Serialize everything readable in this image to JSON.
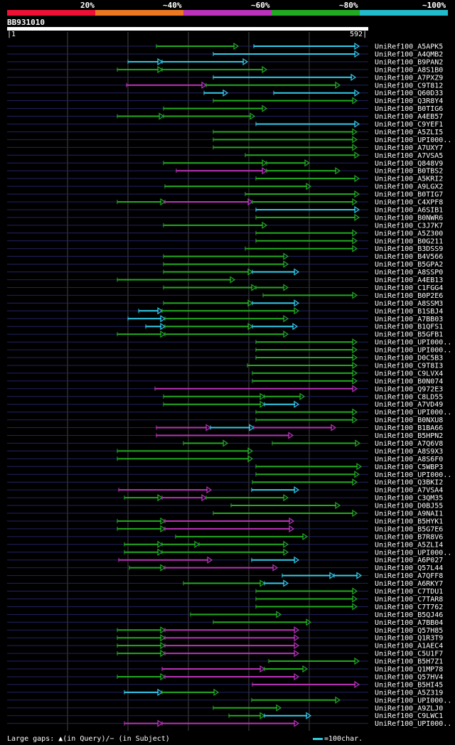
{
  "legend": {
    "segments": [
      {
        "label": "20%",
        "color": "#ee1133"
      },
      {
        "label": "~40%",
        "color": "#ee7722"
      },
      {
        "label": "~60%",
        "color": "#bb33bb"
      },
      {
        "label": "~80%",
        "color": "#22aa22"
      },
      {
        "label": "~100%",
        "color": "#22bbcc"
      }
    ]
  },
  "query": {
    "name": "BB931010",
    "start": "1",
    "end": "592",
    "length": 592
  },
  "colors": {
    "green": "#22aa22",
    "cyan": "#33ccee",
    "magenta": "#bb33bb",
    "track": "#222266",
    "grid": "#444444"
  },
  "hits": [
    {
      "name": "UniRef100_A5APK5",
      "segs": [
        [
          220,
          335,
          "g"
        ],
        [
          357,
          505,
          "c"
        ]
      ]
    },
    {
      "name": "UniRef100_A4QMB2",
      "segs": [
        [
          300,
          505,
          "c"
        ]
      ]
    },
    {
      "name": "UniRef100_B9PAN2",
      "segs": [
        [
          180,
          228,
          "c"
        ],
        [
          228,
          348,
          "c"
        ]
      ]
    },
    {
      "name": "UniRef100_A8S1B0",
      "segs": [
        [
          165,
          228,
          "g"
        ],
        [
          228,
          375,
          "g"
        ]
      ]
    },
    {
      "name": "UniRef100_A7PXZ9",
      "segs": [
        [
          300,
          500,
          "c"
        ]
      ]
    },
    {
      "name": "UniRef100_C9T812",
      "segs": [
        [
          178,
          290,
          "m"
        ],
        [
          290,
          478,
          "g"
        ]
      ]
    },
    {
      "name": "UniRef100_Q60D33",
      "segs": [
        [
          287,
          320,
          "c"
        ],
        [
          385,
          505,
          "c"
        ]
      ]
    },
    {
      "name": "UniRef100_Q3R8Y4",
      "segs": [
        [
          300,
          502,
          "g"
        ]
      ]
    },
    {
      "name": "UniRef100_B0TIG6",
      "segs": [
        [
          230,
          375,
          "g"
        ]
      ]
    },
    {
      "name": "UniRef100_A4EB57",
      "segs": [
        [
          165,
          230,
          "g"
        ],
        [
          230,
          358,
          "g"
        ]
      ]
    },
    {
      "name": "UniRef100_C9YEF1",
      "segs": [
        [
          360,
          505,
          "c"
        ]
      ]
    },
    {
      "name": "UniRef100_A5ZLI5",
      "segs": [
        [
          300,
          502,
          "g"
        ]
      ]
    },
    {
      "name": "UniRef100_UPI000..",
      "segs": [
        [
          300,
          502,
          "g"
        ]
      ]
    },
    {
      "name": "UniRef100_A7UXY7",
      "segs": [
        [
          300,
          502,
          "g"
        ]
      ]
    },
    {
      "name": "UniRef100_A7VSA5",
      "segs": [
        [
          345,
          505,
          "g"
        ]
      ]
    },
    {
      "name": "UniRef100_Q848V9",
      "segs": [
        [
          230,
          375,
          "g"
        ],
        [
          375,
          435,
          "g"
        ]
      ]
    },
    {
      "name": "UniRef100_B0TBS2",
      "segs": [
        [
          248,
          375,
          "m"
        ],
        [
          375,
          478,
          "g"
        ]
      ]
    },
    {
      "name": "UniRef100_A5KRI2",
      "segs": [
        [
          360,
          505,
          "g"
        ]
      ]
    },
    {
      "name": "UniRef100_A9LGX2",
      "segs": [
        [
          232,
          437,
          "g"
        ]
      ]
    },
    {
      "name": "UniRef100_B0TIG7",
      "segs": [
        [
          345,
          505,
          "g"
        ]
      ]
    },
    {
      "name": "UniRef100_C4XPF8",
      "segs": [
        [
          165,
          232,
          "g"
        ],
        [
          232,
          355,
          "m"
        ],
        [
          355,
          502,
          "g"
        ]
      ]
    },
    {
      "name": "UniRef100_A6SIB1",
      "segs": [
        [
          360,
          505,
          "c"
        ]
      ]
    },
    {
      "name": "UniRef100_B0NWR6",
      "segs": [
        [
          360,
          505,
          "g"
        ]
      ]
    },
    {
      "name": "UniRef100_C3J7K7",
      "segs": [
        [
          230,
          375,
          "g"
        ]
      ]
    },
    {
      "name": "UniRef100_A5Z300",
      "segs": [
        [
          360,
          502,
          "g"
        ]
      ]
    },
    {
      "name": "UniRef100_B0G211",
      "segs": [
        [
          360,
          502,
          "g"
        ]
      ]
    },
    {
      "name": "UniRef100_B3DSS9",
      "segs": [
        [
          345,
          502,
          "g"
        ]
      ]
    },
    {
      "name": "UniRef100_B4V566",
      "segs": [
        [
          230,
          405,
          "g"
        ]
      ]
    },
    {
      "name": "UniRef100_B5GPA2",
      "segs": [
        [
          230,
          405,
          "g"
        ]
      ]
    },
    {
      "name": "UniRef100_A8SSP0",
      "segs": [
        [
          230,
          355,
          "g"
        ],
        [
          355,
          420,
          "c"
        ]
      ]
    },
    {
      "name": "UniRef100_A4EB13",
      "segs": [
        [
          165,
          330,
          "g"
        ]
      ]
    },
    {
      "name": "UniRef100_C1FGG4",
      "segs": [
        [
          230,
          360,
          "g"
        ],
        [
          360,
          405,
          "g"
        ]
      ]
    },
    {
      "name": "UniRef100_B0P2E6",
      "segs": [
        [
          370,
          502,
          "g"
        ]
      ]
    },
    {
      "name": "UniRef100_A8SSM3",
      "segs": [
        [
          230,
          355,
          "g"
        ],
        [
          355,
          420,
          "c"
        ]
      ]
    },
    {
      "name": "UniRef100_B1SBJ4",
      "segs": [
        [
          195,
          228,
          "c"
        ],
        [
          228,
          420,
          "g"
        ]
      ]
    },
    {
      "name": "UniRef100_A7BB03",
      "segs": [
        [
          180,
          232,
          "c"
        ],
        [
          232,
          405,
          "g"
        ]
      ]
    },
    {
      "name": "UniRef100_B1QFS1",
      "segs": [
        [
          205,
          232,
          "c"
        ],
        [
          232,
          355,
          "g"
        ],
        [
          355,
          418,
          "c"
        ]
      ]
    },
    {
      "name": "UniRef100_B5GFB1",
      "segs": [
        [
          165,
          232,
          "g"
        ],
        [
          232,
          405,
          "g"
        ]
      ]
    },
    {
      "name": "UniRef100_UPI000..",
      "segs": [
        [
          360,
          502,
          "g"
        ]
      ]
    },
    {
      "name": "UniRef100_UPI000..",
      "segs": [
        [
          360,
          502,
          "g"
        ]
      ]
    },
    {
      "name": "UniRef100_D0C5B3",
      "segs": [
        [
          360,
          502,
          "g"
        ]
      ]
    },
    {
      "name": "UniRef100_C9T8I3",
      "segs": [
        [
          348,
          502,
          "g"
        ]
      ]
    },
    {
      "name": "UniRef100_C9LVX4",
      "segs": [
        [
          355,
          502,
          "g"
        ]
      ]
    },
    {
      "name": "UniRef100_B0N074",
      "segs": [
        [
          355,
          502,
          "g"
        ]
      ]
    },
    {
      "name": "UniRef100_Q972E3",
      "segs": [
        [
          218,
          502,
          "m"
        ]
      ]
    },
    {
      "name": "UniRef100_C8LD55",
      "segs": [
        [
          230,
          372,
          "g"
        ],
        [
          372,
          428,
          "g"
        ]
      ]
    },
    {
      "name": "UniRef100_A7VD49",
      "segs": [
        [
          230,
          372,
          "g"
        ],
        [
          372,
          420,
          "c"
        ]
      ]
    },
    {
      "name": "UniRef100_UPI000..",
      "segs": [
        [
          360,
          502,
          "g"
        ]
      ]
    },
    {
      "name": "UniRef100_B0NXU8",
      "segs": [
        [
          360,
          502,
          "g"
        ]
      ]
    },
    {
      "name": "UniRef100_B1BA66",
      "segs": [
        [
          220,
          296,
          "m"
        ],
        [
          296,
          357,
          "c"
        ],
        [
          357,
          472,
          "m"
        ]
      ]
    },
    {
      "name": "UniRef100_B5HPN2",
      "segs": [
        [
          220,
          412,
          "m"
        ]
      ]
    },
    {
      "name": "UniRef100_A7Q6V8",
      "segs": [
        [
          258,
          320,
          "g"
        ],
        [
          383,
          506,
          "g"
        ]
      ]
    },
    {
      "name": "UniRef100_A8S9X3",
      "segs": [
        [
          165,
          355,
          "g"
        ]
      ]
    },
    {
      "name": "UniRef100_A8S6F0",
      "segs": [
        [
          165,
          355,
          "g"
        ]
      ]
    },
    {
      "name": "UniRef100_C5WBP3",
      "segs": [
        [
          360,
          508,
          "g"
        ]
      ]
    },
    {
      "name": "UniRef100_UPI000..",
      "segs": [
        [
          360,
          505,
          "g"
        ]
      ]
    },
    {
      "name": "UniRef100_Q3BKI2",
      "segs": [
        [
          355,
          502,
          "g"
        ]
      ]
    },
    {
      "name": "UniRef100_A7VSA4",
      "segs": [
        [
          167,
          297,
          "m"
        ],
        [
          354,
          420,
          "c"
        ]
      ]
    },
    {
      "name": "UniRef100_C3QM35",
      "segs": [
        [
          175,
          228,
          "g"
        ],
        [
          228,
          290,
          "m"
        ],
        [
          290,
          405,
          "g"
        ]
      ]
    },
    {
      "name": "UniRef100_D0BJ55",
      "segs": [
        [
          325,
          478,
          "g"
        ]
      ]
    },
    {
      "name": "UniRef100_A9NAI1",
      "segs": [
        [
          300,
          502,
          "g"
        ]
      ]
    },
    {
      "name": "UniRef100_B5HYK1",
      "segs": [
        [
          165,
          232,
          "g"
        ],
        [
          232,
          413,
          "m"
        ]
      ]
    },
    {
      "name": "UniRef100_B5G7E6",
      "segs": [
        [
          165,
          232,
          "g"
        ],
        [
          232,
          413,
          "m"
        ]
      ]
    },
    {
      "name": "UniRef100_B7R8V6",
      "segs": [
        [
          247,
          432,
          "g"
        ]
      ]
    },
    {
      "name": "UniRef100_A5ZLI4",
      "segs": [
        [
          175,
          228,
          "g"
        ],
        [
          228,
          280,
          "g"
        ],
        [
          280,
          405,
          "g"
        ]
      ]
    },
    {
      "name": "UniRef100_UPI000..",
      "segs": [
        [
          175,
          228,
          "g"
        ],
        [
          228,
          405,
          "g"
        ]
      ]
    },
    {
      "name": "UniRef100_A6P027",
      "segs": [
        [
          167,
          298,
          "m"
        ],
        [
          354,
          420,
          "c"
        ]
      ]
    },
    {
      "name": "UniRef100_Q57L44",
      "segs": [
        [
          182,
          232,
          "g"
        ],
        [
          232,
          390,
          "m"
        ]
      ]
    },
    {
      "name": "UniRef100_A7QFF8",
      "segs": [
        [
          397,
          470,
          "c"
        ],
        [
          470,
          508,
          "c"
        ]
      ]
    },
    {
      "name": "UniRef100_A6RKY7",
      "segs": [
        [
          258,
          372,
          "g"
        ],
        [
          372,
          405,
          "c"
        ]
      ]
    },
    {
      "name": "UniRef100_C7TDU1",
      "segs": [
        [
          360,
          502,
          "g"
        ]
      ]
    },
    {
      "name": "UniRef100_C7TAR8",
      "segs": [
        [
          360,
          502,
          "g"
        ]
      ]
    },
    {
      "name": "UniRef100_C7T762",
      "segs": [
        [
          360,
          502,
          "g"
        ]
      ]
    },
    {
      "name": "UniRef100_B5QJ46",
      "segs": [
        [
          268,
          395,
          "g"
        ]
      ]
    },
    {
      "name": "UniRef100_A7BB04",
      "segs": [
        [
          300,
          437,
          "g"
        ]
      ]
    },
    {
      "name": "UniRef100_Q57H85",
      "segs": [
        [
          165,
          232,
          "g"
        ],
        [
          232,
          420,
          "m"
        ]
      ]
    },
    {
      "name": "UniRef100_Q1R3T9",
      "segs": [
        [
          165,
          232,
          "g"
        ],
        [
          232,
          420,
          "m"
        ]
      ]
    },
    {
      "name": "UniRef100_A1AEC4",
      "segs": [
        [
          165,
          232,
          "g"
        ],
        [
          232,
          420,
          "m"
        ]
      ]
    },
    {
      "name": "UniRef100_C5U1F7",
      "segs": [
        [
          165,
          232,
          "g"
        ],
        [
          232,
          420,
          "m"
        ]
      ]
    },
    {
      "name": "UniRef100_B5H7Z1",
      "segs": [
        [
          378,
          505,
          "g"
        ]
      ]
    },
    {
      "name": "UniRef100_Q1MP78",
      "segs": [
        [
          228,
          372,
          "m"
        ],
        [
          372,
          432,
          "g"
        ]
      ]
    },
    {
      "name": "UniRef100_Q57HV4",
      "segs": [
        [
          165,
          232,
          "g"
        ],
        [
          232,
          420,
          "m"
        ]
      ]
    },
    {
      "name": "UniRef100_B5HI45",
      "segs": [
        [
          355,
          505,
          "m"
        ]
      ]
    },
    {
      "name": "UniRef100_A5Z319",
      "segs": [
        [
          175,
          228,
          "c"
        ],
        [
          228,
          307,
          "g"
        ]
      ]
    },
    {
      "name": "UniRef100_UPI000..",
      "segs": [
        [
          354,
          478,
          "g"
        ]
      ]
    },
    {
      "name": "UniRef100_A9ZLJ0",
      "segs": [
        [
          300,
          395,
          "g"
        ]
      ]
    },
    {
      "name": "UniRef100_C9LWC1",
      "segs": [
        [
          322,
          372,
          "g"
        ],
        [
          372,
          437,
          "c"
        ]
      ]
    },
    {
      "name": "UniRef100_UPI000..",
      "segs": [
        [
          175,
          228,
          "m"
        ],
        [
          228,
          420,
          "m"
        ]
      ]
    }
  ],
  "footer": {
    "gaps_label": "Large gaps: ▲(in Query)/− (in Subject)",
    "scale_label": "=100char."
  }
}
